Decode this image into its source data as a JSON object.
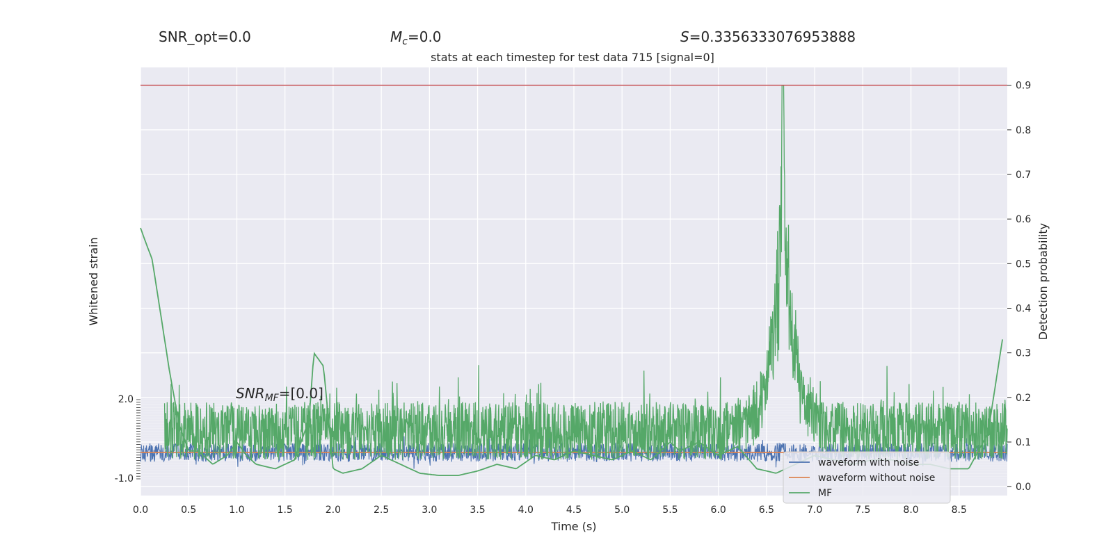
{
  "header": {
    "snr_opt": "SNR_opt=0.0",
    "mc_symbol": "M",
    "mc_sub": "c",
    "mc_value": "=0.0",
    "s_symbol": "S",
    "s_value": "=0.3356333076953888",
    "snr_mf_symbol": "SNR",
    "snr_mf_sub": "MF",
    "snr_mf_value": "=[0.0]"
  },
  "chart_data": {
    "type": "line",
    "title": "stats at each timestep for test data 715 [signal=0]",
    "xlabel": "Time (s)",
    "ylabel_left": "Whitened strain",
    "ylabel_right": "Detection probability",
    "xlim": [
      0.0,
      9.0
    ],
    "ylim_right": [
      -0.02,
      0.94
    ],
    "ylim_left_ticks": [
      -1.0,
      2.0
    ],
    "grid": true,
    "legend_position": "lower-right",
    "x_ticks": [
      "0.0",
      "0.5",
      "1.0",
      "1.5",
      "2.0",
      "2.5",
      "3.0",
      "3.5",
      "4.0",
      "4.5",
      "5.0",
      "5.5",
      "6.0",
      "6.5",
      "7.0",
      "7.5",
      "8.0",
      "8.5"
    ],
    "y_ticks_right": [
      "0.0",
      "0.1",
      "0.2",
      "0.3",
      "0.4",
      "0.5",
      "0.6",
      "0.7",
      "0.8",
      "0.9"
    ],
    "left_tick_top_label": "2.0",
    "left_tick_bottom_label": "-1.0",
    "threshold": {
      "value": 0.9,
      "color": "#c44e52"
    },
    "series": [
      {
        "name": "waveform with noise",
        "color": "#4c72b0",
        "axis": "left",
        "approx_center": 0.0,
        "approx_amplitude": 0.35
      },
      {
        "name": "waveform without noise",
        "color": "#dd8452",
        "axis": "left",
        "values": [
          0.0,
          0.0
        ]
      },
      {
        "name": "MF",
        "color": "#55a868",
        "axis": "right"
      }
    ],
    "mf_smooth_envelope": {
      "x": [
        0.0,
        0.05,
        0.12,
        0.2,
        0.3,
        0.4,
        0.5,
        0.6,
        0.75,
        0.9,
        1.0,
        1.1,
        1.2,
        1.4,
        1.6,
        1.75,
        1.8,
        1.9,
        2.0,
        2.1,
        2.3,
        2.5,
        2.7,
        2.9,
        3.1,
        3.3,
        3.5,
        3.7,
        3.9,
        4.1,
        4.3,
        4.5,
        4.7,
        4.9,
        5.1,
        5.3,
        5.5,
        5.6,
        5.8,
        6.0,
        6.2,
        6.4,
        6.6,
        6.8,
        7.0,
        7.2,
        7.4,
        7.6,
        7.8,
        8.0,
        8.2,
        8.4,
        8.6,
        8.8,
        8.95
      ],
      "y": [
        0.58,
        0.55,
        0.51,
        0.4,
        0.26,
        0.14,
        0.08,
        0.08,
        0.05,
        0.07,
        0.1,
        0.07,
        0.05,
        0.04,
        0.06,
        0.15,
        0.3,
        0.27,
        0.04,
        0.03,
        0.04,
        0.07,
        0.05,
        0.03,
        0.025,
        0.025,
        0.035,
        0.05,
        0.04,
        0.07,
        0.06,
        0.08,
        0.07,
        0.06,
        0.08,
        0.06,
        0.1,
        0.08,
        0.1,
        0.07,
        0.09,
        0.04,
        0.03,
        0.05,
        0.07,
        0.06,
        0.05,
        0.06,
        0.06,
        0.05,
        0.05,
        0.04,
        0.04,
        0.12,
        0.33
      ]
    },
    "mf_peak": {
      "x": 6.67,
      "y": 0.9
    }
  }
}
